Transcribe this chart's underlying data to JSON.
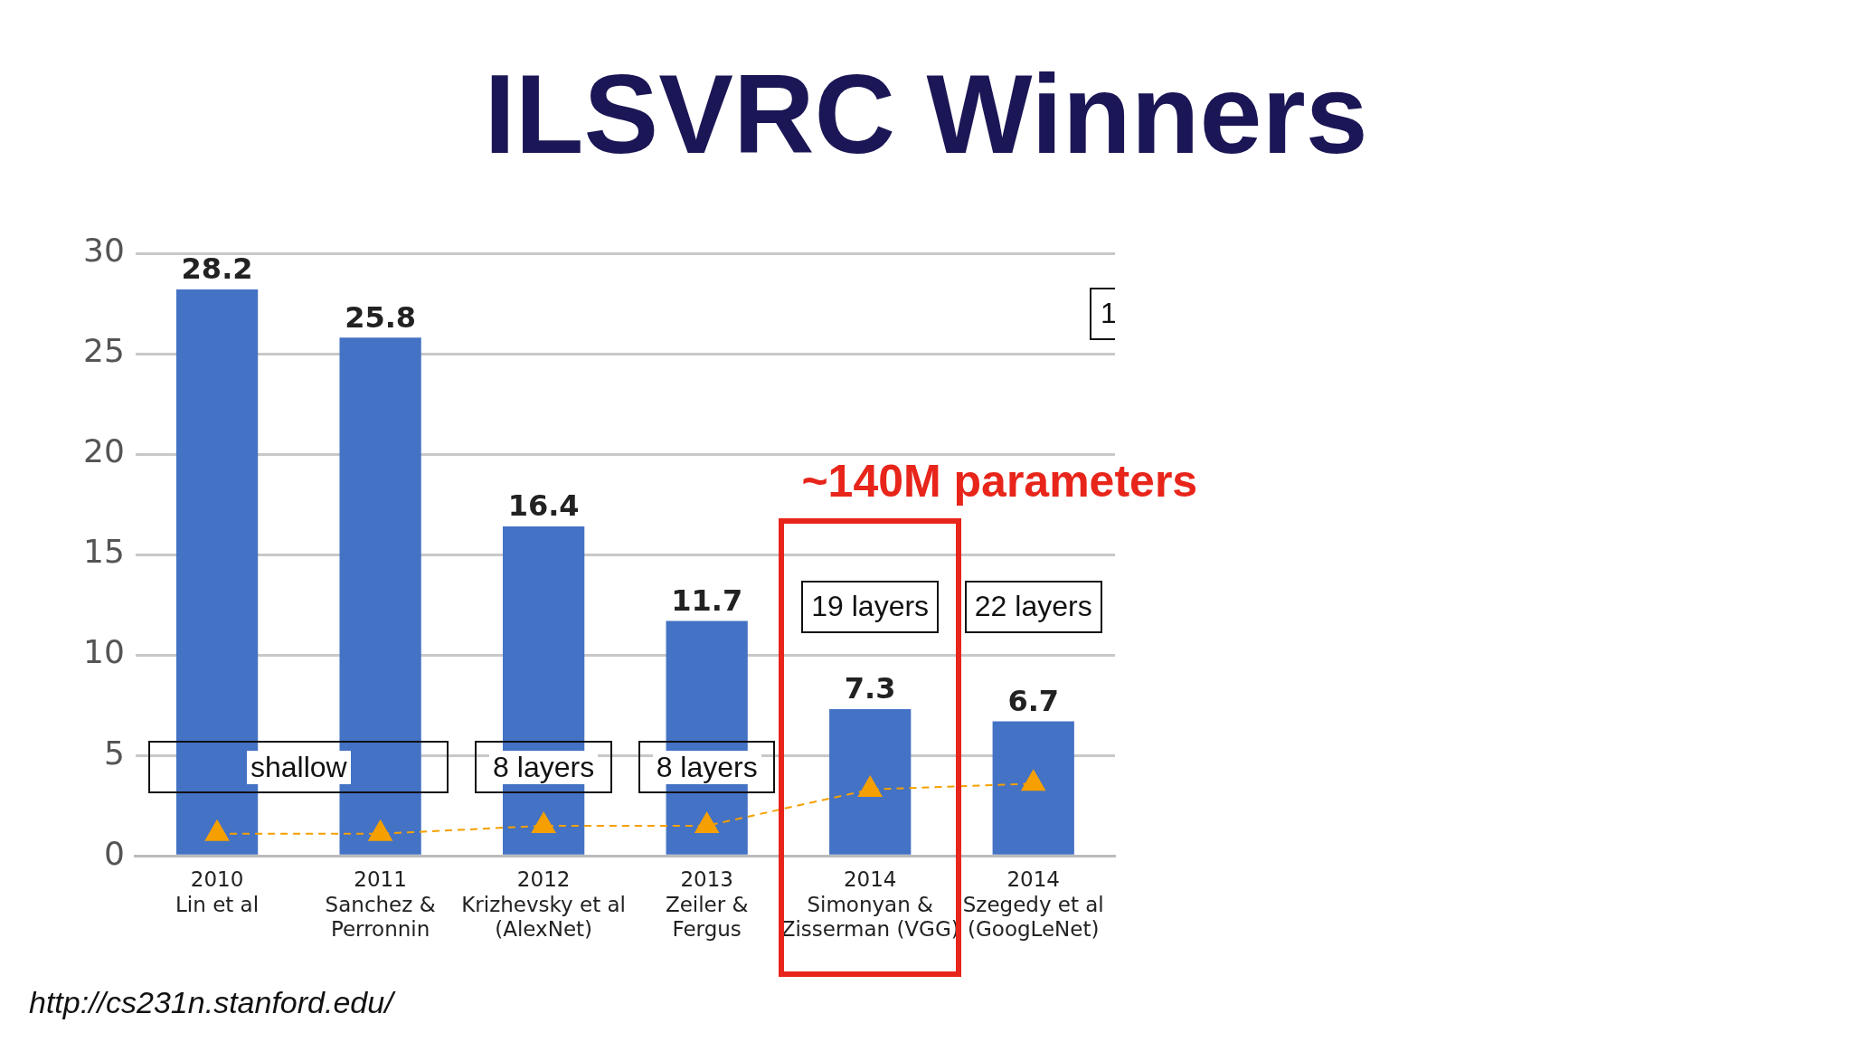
{
  "chart_data": {
    "type": "bar",
    "title": "ILSVRC Winners",
    "categories": [
      "2010\nLin et al",
      "2011\nSanchez &\nPerronnin",
      "2012\nKrizhevsky et al\n(AlexNet)",
      "2013\nZeiler &\nFergus",
      "2014\nSimonyan &\nZisserman (VGG)",
      "2014\nSzegedy et al\n(GoogLeNet)"
    ],
    "series": [
      {
        "color": "#4472c4",
        "values": [
          28.2,
          25.8,
          16.4,
          11.7,
          7.3,
          6.7
        ],
        "value_labels": [
          "28.2",
          "25.8",
          "16.4",
          "11.7",
          "7.3",
          "6.7"
        ]
      },
      {
        "type": "line",
        "color": "#f5a000",
        "values": [
          1.1,
          1.1,
          1.5,
          1.5,
          3.3,
          3.6
        ]
      }
    ],
    "ylim": [
      0,
      30
    ],
    "yticks": [
      0,
      5,
      10,
      15,
      20,
      25,
      30
    ],
    "grid": "y",
    "legend": false,
    "marker": "triangle",
    "line_style": "dashed",
    "annotations": [
      "shallow",
      "8 layers",
      "8 layers",
      "19 layers",
      "22 layers",
      "1",
      "~140M parameters",
      "http://cs231n.stanford.edu/"
    ]
  }
}
